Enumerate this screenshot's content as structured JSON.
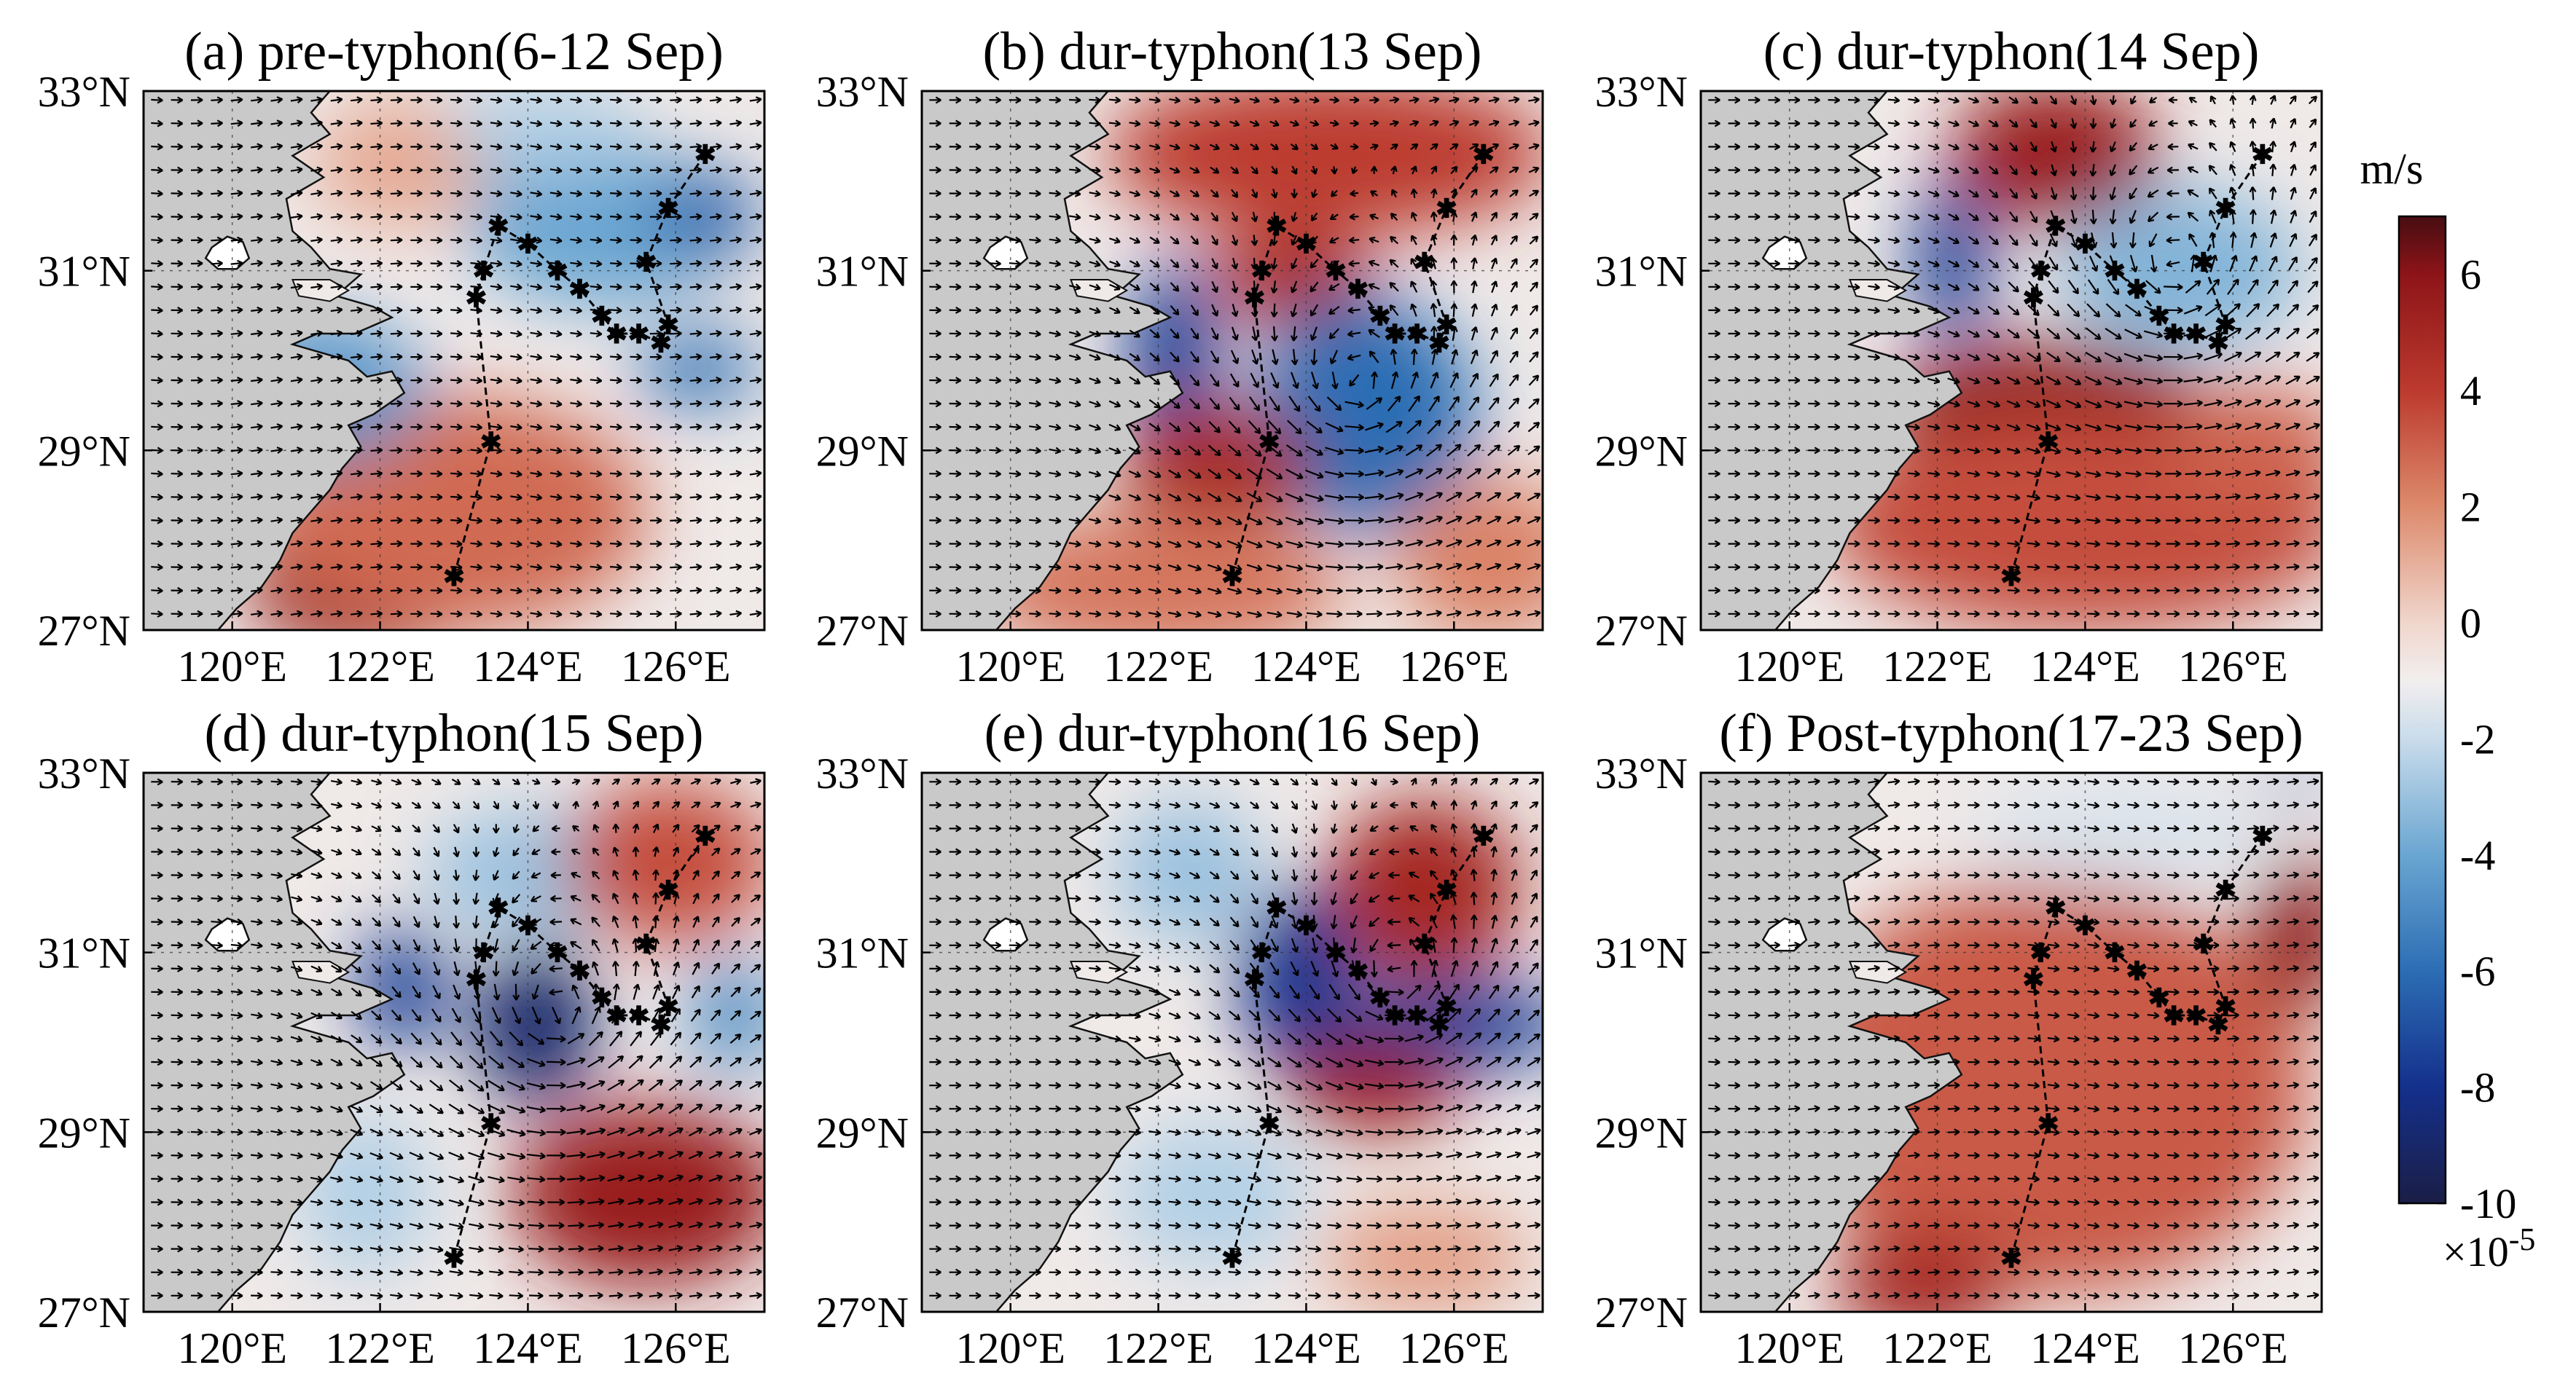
{
  "figure": {
    "panels": [
      {
        "id": "a",
        "title": "(a) pre-typhon(6-12 Sep)",
        "blobs": [
          {
            "lon": 121.8,
            "lat": 27.6,
            "rlon": 1.6,
            "rlat": 0.9,
            "value": 5.5
          },
          {
            "lon": 123.0,
            "lat": 28.3,
            "rlon": 2.6,
            "rlat": 1.3,
            "value": 2.8
          },
          {
            "lon": 121.2,
            "lat": 29.7,
            "rlon": 1.4,
            "rlat": 0.8,
            "value": -4.5
          },
          {
            "lon": 125.0,
            "lat": 31.5,
            "rlon": 1.8,
            "rlat": 0.9,
            "value": -4.0
          },
          {
            "lon": 126.4,
            "lat": 31.6,
            "rlon": 0.7,
            "rlat": 0.5,
            "value": -6.5
          },
          {
            "lon": 126.3,
            "lat": 29.9,
            "rlon": 0.8,
            "rlat": 0.4,
            "value": -6.0
          },
          {
            "lon": 122.3,
            "lat": 32.2,
            "rlon": 1.2,
            "rlat": 0.7,
            "value": 1.2
          },
          {
            "lon": 124.2,
            "lat": 32.6,
            "rlon": 1.3,
            "rlat": 0.5,
            "value": -2.5
          }
        ],
        "vortex": {
          "lon": 124.5,
          "lat": 30.5,
          "sign": 0,
          "radius": 2.0
        }
      },
      {
        "id": "b",
        "title": "(b) dur-typhon(13 Sep)",
        "blobs": [
          {
            "lon": 124.3,
            "lat": 32.3,
            "rlon": 3.0,
            "rlat": 0.9,
            "value": 4.0
          },
          {
            "lon": 123.8,
            "lat": 30.9,
            "rlon": 1.1,
            "rlat": 0.5,
            "value": 5.0
          },
          {
            "lon": 124.8,
            "lat": 29.4,
            "rlon": 1.5,
            "rlat": 1.3,
            "value": -6.0
          },
          {
            "lon": 122.2,
            "lat": 30.0,
            "rlon": 0.6,
            "rlat": 1.1,
            "value": -7.5
          },
          {
            "lon": 122.8,
            "lat": 28.8,
            "rlon": 1.3,
            "rlat": 0.7,
            "value": 5.0
          },
          {
            "lon": 122.0,
            "lat": 27.5,
            "rlon": 2.5,
            "rlat": 0.8,
            "value": 2.5
          },
          {
            "lon": 126.5,
            "lat": 27.8,
            "rlon": 1.3,
            "rlat": 0.9,
            "value": 2.2
          }
        ],
        "vortex": {
          "lon": 124.7,
          "lat": 29.7,
          "sign": 1,
          "radius": 2.6
        }
      },
      {
        "id": "c",
        "title": "(c) dur-typhon(14 Sep)",
        "blobs": [
          {
            "lon": 123.6,
            "lat": 32.3,
            "rlon": 1.4,
            "rlat": 0.8,
            "value": 5.5
          },
          {
            "lon": 125.3,
            "lat": 31.0,
            "rlon": 1.6,
            "rlat": 0.9,
            "value": -3.5
          },
          {
            "lon": 122.2,
            "lat": 31.1,
            "rlon": 0.5,
            "rlat": 0.9,
            "value": -7.5
          },
          {
            "lon": 123.5,
            "lat": 29.4,
            "rlon": 2.2,
            "rlat": 0.8,
            "value": 6.0
          },
          {
            "lon": 124.0,
            "lat": 28.2,
            "rlon": 3.5,
            "rlat": 1.2,
            "value": 3.5
          },
          {
            "lon": 126.3,
            "lat": 29.0,
            "rlon": 1.2,
            "rlat": 0.7,
            "value": 3.0
          }
        ],
        "vortex": {
          "lon": 125.2,
          "lat": 31.0,
          "sign": 1,
          "radius": 2.4
        }
      },
      {
        "id": "d",
        "title": "(d) dur-typhon(15 Sep)",
        "blobs": [
          {
            "lon": 124.1,
            "lat": 30.2,
            "rlon": 0.8,
            "rlat": 0.9,
            "value": -9.0
          },
          {
            "lon": 125.6,
            "lat": 28.3,
            "rlon": 1.8,
            "rlat": 1.0,
            "value": 5.5
          },
          {
            "lon": 122.3,
            "lat": 30.6,
            "rlon": 0.6,
            "rlat": 0.7,
            "value": -7.5
          },
          {
            "lon": 124.2,
            "lat": 31.9,
            "rlon": 1.6,
            "rlat": 0.7,
            "value": -3.0
          },
          {
            "lon": 125.9,
            "lat": 32.0,
            "rlon": 1.4,
            "rlat": 0.9,
            "value": 3.5
          },
          {
            "lon": 126.8,
            "lat": 30.3,
            "rlon": 0.6,
            "rlat": 0.6,
            "value": -5.0
          },
          {
            "lon": 121.8,
            "lat": 28.3,
            "rlon": 0.9,
            "rlat": 0.9,
            "value": -2.5
          }
        ],
        "vortex": {
          "lon": 124.4,
          "lat": 30.3,
          "sign": 1,
          "radius": 2.5
        }
      },
      {
        "id": "e",
        "title": "(e) dur-typhon(16 Sep)",
        "blobs": [
          {
            "lon": 125.6,
            "lat": 31.7,
            "rlon": 1.3,
            "rlat": 1.0,
            "value": 5.0
          },
          {
            "lon": 126.0,
            "lat": 30.2,
            "rlon": 1.6,
            "rlat": 0.5,
            "value": -7.5
          },
          {
            "lon": 123.9,
            "lat": 30.7,
            "rlon": 0.8,
            "rlat": 1.0,
            "value": -8.0
          },
          {
            "lon": 124.9,
            "lat": 29.5,
            "rlon": 1.2,
            "rlat": 0.5,
            "value": 5.5
          },
          {
            "lon": 122.7,
            "lat": 28.3,
            "rlon": 1.3,
            "rlat": 0.8,
            "value": -2.5
          },
          {
            "lon": 125.6,
            "lat": 27.6,
            "rlon": 1.4,
            "rlat": 0.6,
            "value": 1.5
          },
          {
            "lon": 122.4,
            "lat": 31.9,
            "rlon": 1.0,
            "rlat": 0.8,
            "value": -3.0
          }
        ],
        "vortex": {
          "lon": 125.2,
          "lat": 30.7,
          "sign": 1,
          "radius": 2.3
        }
      },
      {
        "id": "f",
        "title": "(f) Post-typhon(17-23 Sep)",
        "blobs": [
          {
            "lon": 123.5,
            "lat": 29.5,
            "rlon": 3.5,
            "rlat": 2.3,
            "value": 3.2
          },
          {
            "lon": 126.9,
            "lat": 31.2,
            "rlon": 0.6,
            "rlat": 0.9,
            "value": 6.0
          },
          {
            "lon": 121.8,
            "lat": 27.3,
            "rlon": 1.2,
            "rlat": 0.6,
            "value": 5.0
          },
          {
            "lon": 124.5,
            "lat": 32.3,
            "rlon": 2.0,
            "rlat": 0.6,
            "value": -1.6
          },
          {
            "lon": 126.8,
            "lat": 32.9,
            "rlon": 0.3,
            "rlat": 0.2,
            "value": -6.0
          }
        ],
        "vortex": {
          "lon": 124.5,
          "lat": 30.0,
          "sign": 0,
          "radius": 2.0
        }
      }
    ],
    "axes": {
      "lon_ticks": [
        "120°E",
        "122°E",
        "124°E",
        "126°E"
      ],
      "lon_tick_values": [
        120,
        122,
        124,
        126
      ],
      "lat_ticks": [
        "33°N",
        "31°N",
        "29°N",
        "27°N"
      ],
      "lat_tick_values": [
        33,
        31,
        29,
        27
      ],
      "lon_range": [
        118.8,
        127.2
      ],
      "lat_range": [
        27.0,
        33.0
      ]
    },
    "typhoon_track": [
      {
        "lon": 123.0,
        "lat": 27.6
      },
      {
        "lon": 123.5,
        "lat": 29.1
      },
      {
        "lon": 123.3,
        "lat": 30.7
      },
      {
        "lon": 123.4,
        "lat": 31.0
      },
      {
        "lon": 123.6,
        "lat": 31.5
      },
      {
        "lon": 124.0,
        "lat": 31.3
      },
      {
        "lon": 124.4,
        "lat": 31.0
      },
      {
        "lon": 124.7,
        "lat": 30.8
      },
      {
        "lon": 125.0,
        "lat": 30.5
      },
      {
        "lon": 125.2,
        "lat": 30.3
      },
      {
        "lon": 125.5,
        "lat": 30.3
      },
      {
        "lon": 125.8,
        "lat": 30.2
      },
      {
        "lon": 125.9,
        "lat": 30.4
      },
      {
        "lon": 125.6,
        "lat": 31.1
      },
      {
        "lon": 125.9,
        "lat": 31.7
      },
      {
        "lon": 126.4,
        "lat": 32.3
      }
    ],
    "colorbar": {
      "unit": "m/s",
      "min": -10,
      "max": 7,
      "ticks": [
        "6",
        "4",
        "2",
        "0",
        "-2",
        "-4",
        "-6",
        "-8",
        "-10"
      ],
      "tick_values": [
        6,
        4,
        2,
        0,
        -2,
        -4,
        -6,
        -8,
        -10
      ],
      "exponent_base": "×10",
      "exponent_power": "-5",
      "colormap_stops": [
        {
          "v": -10,
          "color": "#1b1e46"
        },
        {
          "v": -8,
          "color": "#14308c"
        },
        {
          "v": -6,
          "color": "#2c6db4"
        },
        {
          "v": -4,
          "color": "#6aa6d2"
        },
        {
          "v": -2,
          "color": "#c9dceb"
        },
        {
          "v": -1,
          "color": "#f2eeee"
        },
        {
          "v": 0,
          "color": "#f0d6cc"
        },
        {
          "v": 2,
          "color": "#dd8a6c"
        },
        {
          "v": 4,
          "color": "#bc3a2e"
        },
        {
          "v": 6,
          "color": "#8d1418"
        },
        {
          "v": 7,
          "color": "#470d12"
        }
      ]
    },
    "colors": {
      "land": "#c9c9c9",
      "background_field": "#efe9e8",
      "arrow": "#000000",
      "track": "#000000"
    }
  }
}
